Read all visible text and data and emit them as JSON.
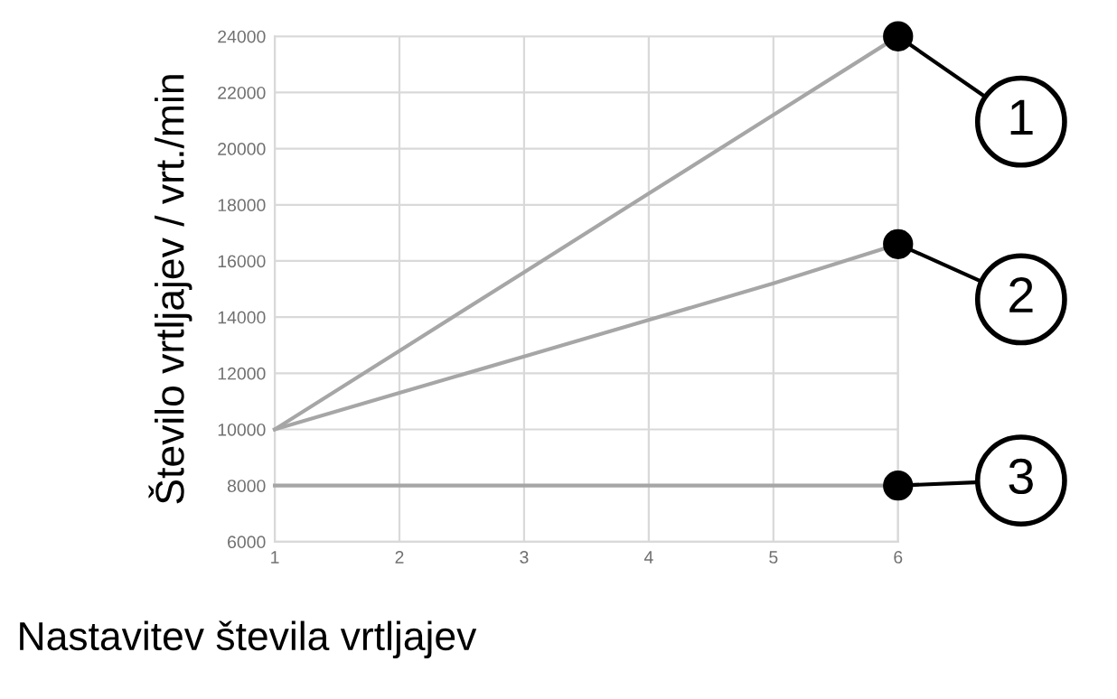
{
  "chart_data": {
    "type": "line",
    "xlabel": "Nastavitev števila vrtljajev",
    "ylabel": "Število vrtljajev / vrt./min",
    "x": [
      1,
      2,
      3,
      4,
      5,
      6
    ],
    "series": [
      {
        "name": "1",
        "color": "#a6a6a6",
        "values": [
          10000,
          12800,
          15600,
          18400,
          21200,
          24000
        ]
      },
      {
        "name": "2",
        "color": "#a6a6a6",
        "values": [
          10000,
          11300,
          12600,
          13900,
          15200,
          16600
        ]
      },
      {
        "name": "3",
        "color": "#a6a6a6",
        "values": [
          8000,
          8000,
          8000,
          8000,
          8000,
          8000
        ]
      }
    ],
    "xlim": [
      1,
      6
    ],
    "xticks": [
      1,
      2,
      3,
      4,
      5,
      6
    ],
    "ylim": [
      6000,
      24000
    ],
    "yticks": [
      6000,
      8000,
      10000,
      12000,
      14000,
      16000,
      18000,
      20000,
      22000,
      24000
    ],
    "grid": true,
    "line_style": "solid",
    "legend": "right"
  }
}
